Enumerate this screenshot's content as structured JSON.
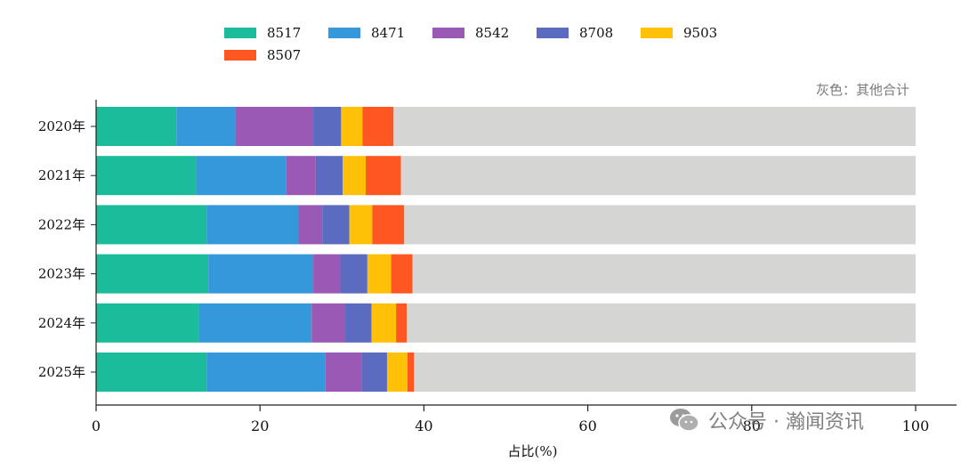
{
  "chart_data": {
    "type": "bar",
    "orientation": "horizontal",
    "stacked": true,
    "categories": [
      "2020年",
      "2021年",
      "2022年",
      "2023年",
      "2024年",
      "2025年"
    ],
    "series": [
      {
        "name": "8517",
        "color": "#1abc9c",
        "values": [
          9.8,
          12.2,
          13.5,
          13.7,
          12.5,
          13.5
        ]
      },
      {
        "name": "8471",
        "color": "#3498db",
        "values": [
          7.2,
          11.0,
          11.2,
          12.8,
          13.8,
          14.5
        ]
      },
      {
        "name": "8542",
        "color": "#9b59b6",
        "values": [
          9.5,
          3.6,
          2.9,
          3.3,
          4.1,
          4.4
        ]
      },
      {
        "name": "8708",
        "color": "#5b6bbf",
        "values": [
          3.4,
          3.3,
          3.3,
          3.3,
          3.2,
          3.1
        ]
      },
      {
        "name": "9503",
        "color": "#ffc107",
        "values": [
          2.6,
          2.8,
          2.8,
          2.9,
          3.0,
          2.5
        ]
      },
      {
        "name": "8507",
        "color": "#ff5722",
        "values": [
          3.8,
          4.3,
          3.9,
          2.6,
          1.3,
          0.8
        ]
      },
      {
        "name": "其他合计",
        "color": "#d5d5d3",
        "values": [
          63.7,
          62.8,
          62.4,
          61.4,
          62.1,
          61.2
        ]
      }
    ],
    "xlabel": "占比(%)",
    "ylabel": "",
    "xlim": [
      0,
      100
    ],
    "xticks": [
      0,
      20,
      40,
      60,
      80,
      100
    ],
    "legend_position": "top",
    "annotation": "灰色：其他合计",
    "grid": false
  },
  "watermark": {
    "text": "公众号 · 瀚闻资讯",
    "icon": "wechat-icon"
  }
}
